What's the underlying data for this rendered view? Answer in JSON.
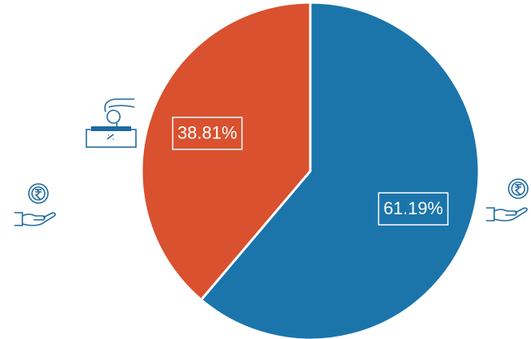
{
  "chart_data": {
    "type": "pie",
    "values": [
      61.19,
      38.81
    ],
    "value_labels": [
      "61.19%",
      "38.81%"
    ],
    "colors": [
      "#1b75ab",
      "#d9512f"
    ],
    "start_angle": 0,
    "direction": "clockwise"
  }
}
